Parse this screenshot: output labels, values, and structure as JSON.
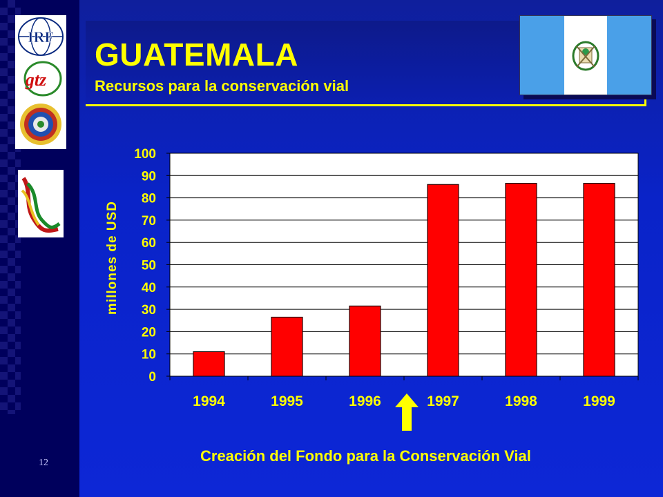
{
  "slide": {
    "title": "GUATEMALA",
    "subtitle": "Recursos para la conservación vial",
    "page_number": "12",
    "footer": "Creación del Fondo para la  Conservación Vial"
  },
  "logos": {
    "irf": "IRF",
    "gtz": "gtz"
  },
  "colors": {
    "bar": "#ff0000",
    "text_accent": "#ffff00",
    "plot_bg": "#ffffff",
    "arrow": "#ffff00"
  },
  "chart_data": {
    "type": "bar",
    "categories": [
      "1994",
      "1995",
      "1996",
      "1997",
      "1998",
      "1999"
    ],
    "values": [
      11,
      26.5,
      31.5,
      86,
      86.5,
      86.5
    ],
    "ylabel": "millones de USD",
    "xlabel": "",
    "ylim": [
      0,
      100
    ],
    "yticks": [
      0,
      10,
      20,
      30,
      40,
      50,
      60,
      70,
      80,
      90,
      100
    ],
    "grid": true,
    "annotation": {
      "type": "arrow-up",
      "between": [
        "1996",
        "1997"
      ]
    }
  }
}
